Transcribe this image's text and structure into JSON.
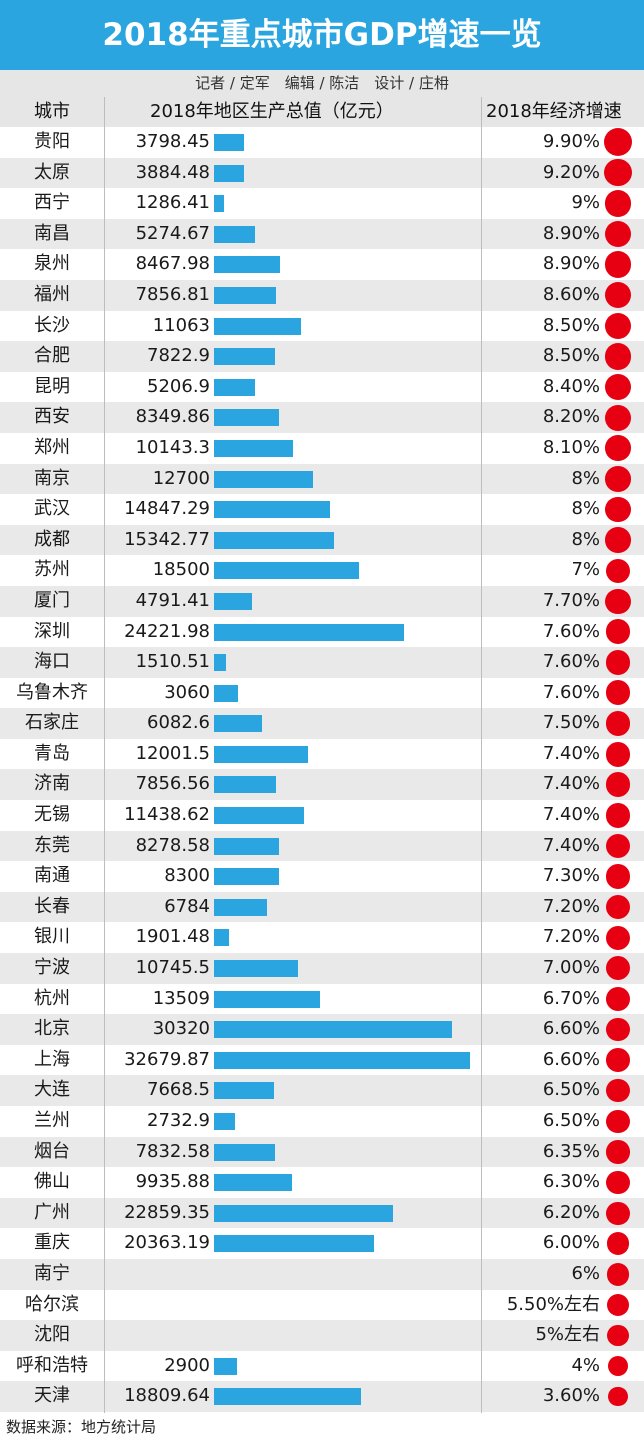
{
  "title": "2018年重点城市GDP增速一览",
  "credits": "记者 / 定军　编辑 / 陈洁　设计 / 庄枏",
  "source": "数据来源：地方统计局",
  "colors": {
    "header_bg": "#2aa5df",
    "bar": "#2aa5df",
    "dot": "#e60012",
    "alt_row": "#e9e9e9"
  },
  "chart_data": {
    "type": "table",
    "columns": [
      "城市",
      "2018年地区生产总值（亿元）",
      "2018年经济增速"
    ],
    "rows": [
      {
        "city": "贵阳",
        "gdp": "3798.45",
        "gdp_value": 3798.45,
        "rate": "9.90%",
        "rate_value": 9.9
      },
      {
        "city": "太原",
        "gdp": "3884.48",
        "gdp_value": 3884.48,
        "rate": "9.20%",
        "rate_value": 9.2
      },
      {
        "city": "西宁",
        "gdp": "1286.41",
        "gdp_value": 1286.41,
        "rate": "9%",
        "rate_value": 9
      },
      {
        "city": "南昌",
        "gdp": "5274.67",
        "gdp_value": 5274.67,
        "rate": "8.90%",
        "rate_value": 8.9
      },
      {
        "city": "泉州",
        "gdp": "8467.98",
        "gdp_value": 8467.98,
        "rate": "8.90%",
        "rate_value": 8.9
      },
      {
        "city": "福州",
        "gdp": "7856.81",
        "gdp_value": 7856.81,
        "rate": "8.60%",
        "rate_value": 8.6
      },
      {
        "city": "长沙",
        "gdp": "11063",
        "gdp_value": 11063,
        "rate": "8.50%",
        "rate_value": 8.5
      },
      {
        "city": "合肥",
        "gdp": "7822.9",
        "gdp_value": 7822.9,
        "rate": "8.50%",
        "rate_value": 8.5
      },
      {
        "city": "昆明",
        "gdp": "5206.9",
        "gdp_value": 5206.9,
        "rate": "8.40%",
        "rate_value": 8.4
      },
      {
        "city": "西安",
        "gdp": "8349.86",
        "gdp_value": 8349.86,
        "rate": "8.20%",
        "rate_value": 8.2
      },
      {
        "city": "郑州",
        "gdp": "10143.3",
        "gdp_value": 10143.3,
        "rate": "8.10%",
        "rate_value": 8.1
      },
      {
        "city": "南京",
        "gdp": "12700",
        "gdp_value": 12700,
        "rate": "8%",
        "rate_value": 8
      },
      {
        "city": "武汉",
        "gdp": "14847.29",
        "gdp_value": 14847.29,
        "rate": "8%",
        "rate_value": 8
      },
      {
        "city": "成都",
        "gdp": "15342.77",
        "gdp_value": 15342.77,
        "rate": "8%",
        "rate_value": 8
      },
      {
        "city": "苏州",
        "gdp": "18500",
        "gdp_value": 18500,
        "rate": "7%",
        "rate_value": 7
      },
      {
        "city": "厦门",
        "gdp": "4791.41",
        "gdp_value": 4791.41,
        "rate": "7.70%",
        "rate_value": 7.7
      },
      {
        "city": "深圳",
        "gdp": "24221.98",
        "gdp_value": 24221.98,
        "rate": "7.60%",
        "rate_value": 7.6
      },
      {
        "city": "海口",
        "gdp": "1510.51",
        "gdp_value": 1510.51,
        "rate": "7.60%",
        "rate_value": 7.6
      },
      {
        "city": "乌鲁木齐",
        "gdp": "3060",
        "gdp_value": 3060,
        "rate": "7.60%",
        "rate_value": 7.6
      },
      {
        "city": "石家庄",
        "gdp": "6082.6",
        "gdp_value": 6082.6,
        "rate": "7.50%",
        "rate_value": 7.5
      },
      {
        "city": "青岛",
        "gdp": "12001.5",
        "gdp_value": 12001.5,
        "rate": "7.40%",
        "rate_value": 7.4
      },
      {
        "city": "济南",
        "gdp": "7856.56",
        "gdp_value": 7856.56,
        "rate": "7.40%",
        "rate_value": 7.4
      },
      {
        "city": "无锡",
        "gdp": "11438.62",
        "gdp_value": 11438.62,
        "rate": "7.40%",
        "rate_value": 7.4
      },
      {
        "city": "东莞",
        "gdp": "8278.58",
        "gdp_value": 8278.58,
        "rate": "7.40%",
        "rate_value": 7.4
      },
      {
        "city": "南通",
        "gdp": "8300",
        "gdp_value": 8300,
        "rate": "7.30%",
        "rate_value": 7.3
      },
      {
        "city": "长春",
        "gdp": "6784",
        "gdp_value": 6784,
        "rate": "7.20%",
        "rate_value": 7.2
      },
      {
        "city": "银川",
        "gdp": "1901.48",
        "gdp_value": 1901.48,
        "rate": "7.20%",
        "rate_value": 7.2
      },
      {
        "city": "宁波",
        "gdp": "10745.5",
        "gdp_value": 10745.5,
        "rate": "7.00%",
        "rate_value": 7
      },
      {
        "city": "杭州",
        "gdp": "13509",
        "gdp_value": 13509,
        "rate": "6.70%",
        "rate_value": 6.7
      },
      {
        "city": "北京",
        "gdp": "30320",
        "gdp_value": 30320,
        "rate": "6.60%",
        "rate_value": 6.6
      },
      {
        "city": "上海",
        "gdp": "32679.87",
        "gdp_value": 32679.87,
        "rate": "6.60%",
        "rate_value": 6.6
      },
      {
        "city": "大连",
        "gdp": "7668.5",
        "gdp_value": 7668.5,
        "rate": "6.50%",
        "rate_value": 6.5
      },
      {
        "city": "兰州",
        "gdp": "2732.9",
        "gdp_value": 2732.9,
        "rate": "6.50%",
        "rate_value": 6.5
      },
      {
        "city": "烟台",
        "gdp": "7832.58",
        "gdp_value": 7832.58,
        "rate": "6.35%",
        "rate_value": 6.35
      },
      {
        "city": "佛山",
        "gdp": "9935.88",
        "gdp_value": 9935.88,
        "rate": "6.30%",
        "rate_value": 6.3
      },
      {
        "city": "广州",
        "gdp": "22859.35",
        "gdp_value": 22859.35,
        "rate": "6.20%",
        "rate_value": 6.2
      },
      {
        "city": "重庆",
        "gdp": "20363.19",
        "gdp_value": 20363.19,
        "rate": "6.00%",
        "rate_value": 6
      },
      {
        "city": "南宁",
        "gdp": "",
        "gdp_value": null,
        "rate": "6%",
        "rate_value": 6
      },
      {
        "city": "哈尔滨",
        "gdp": "",
        "gdp_value": null,
        "rate": "5.50%左右",
        "rate_value": 5.5
      },
      {
        "city": "沈阳",
        "gdp": "",
        "gdp_value": null,
        "rate": "5%左右",
        "rate_value": 5
      },
      {
        "city": "呼和浩特",
        "gdp": "2900",
        "gdp_value": 2900,
        "rate": "4%",
        "rate_value": 4
      },
      {
        "city": "天津",
        "gdp": "18809.64",
        "gdp_value": 18809.64,
        "rate": "3.60%",
        "rate_value": 3.6
      }
    ]
  }
}
